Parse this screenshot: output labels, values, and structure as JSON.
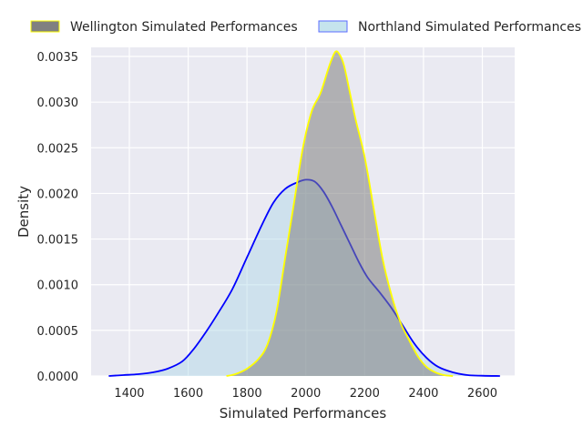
{
  "chart_data": {
    "type": "area",
    "title": "",
    "xlabel": "Simulated Performances",
    "ylabel": "Density",
    "xlim": [
      1270,
      2710
    ],
    "ylim": [
      0,
      0.0036
    ],
    "xticks": [
      "1400",
      "1600",
      "1800",
      "2000",
      "2200",
      "2400",
      "2600"
    ],
    "yticks": [
      "0.0000",
      "0.0005",
      "0.0010",
      "0.0015",
      "0.0020",
      "0.0025",
      "0.0030",
      "0.0035"
    ],
    "grid": true,
    "legend_position": "top, outside plot area",
    "series": [
      {
        "name": "Wellington Simulated Performances",
        "fill_color": "#808080",
        "line_color": "#ffff00",
        "fill_opacity": 0.55,
        "x": [
          1730,
          1760,
          1800,
          1840,
          1870,
          1900,
          1930,
          1960,
          1990,
          2020,
          2050,
          2080,
          2100,
          2115,
          2130,
          2150,
          2170,
          2200,
          2230,
          2260,
          2290,
          2320,
          2350,
          2380,
          2410,
          2440,
          2470,
          2500
        ],
        "y": [
          0,
          2e-05,
          8e-05,
          0.00019,
          0.00035,
          0.0007,
          0.0013,
          0.0019,
          0.0025,
          0.0029,
          0.0031,
          0.0034,
          0.00355,
          0.00352,
          0.0034,
          0.0031,
          0.0028,
          0.0024,
          0.00185,
          0.0013,
          0.0009,
          0.0006,
          0.0004,
          0.00022,
          0.0001,
          4e-05,
          1e-05,
          0
        ]
      },
      {
        "name": "Northland Simulated Performances",
        "fill_color": "#add8e6",
        "line_color": "#0000ff",
        "fill_opacity": 0.45,
        "x": [
          1330,
          1380,
          1430,
          1480,
          1530,
          1580,
          1620,
          1660,
          1700,
          1750,
          1800,
          1850,
          1890,
          1930,
          1970,
          2000,
          2030,
          2060,
          2090,
          2120,
          2150,
          2180,
          2210,
          2250,
          2290,
          2330,
          2370,
          2410,
          2450,
          2500,
          2550,
          2600,
          2660
        ],
        "y": [
          0,
          1e-05,
          2e-05,
          4e-05,
          8e-05,
          0.00016,
          0.0003,
          0.00048,
          0.00068,
          0.00095,
          0.0013,
          0.00165,
          0.0019,
          0.00205,
          0.00212,
          0.00215,
          0.00213,
          0.00202,
          0.00185,
          0.00165,
          0.00145,
          0.00125,
          0.00108,
          0.00092,
          0.00075,
          0.00055,
          0.00035,
          0.0002,
          0.0001,
          4e-05,
          1e-05,
          3e-06,
          0
        ]
      }
    ],
    "colors": {
      "plot_background": "#eaeaf2",
      "grid": "#ffffff"
    }
  }
}
